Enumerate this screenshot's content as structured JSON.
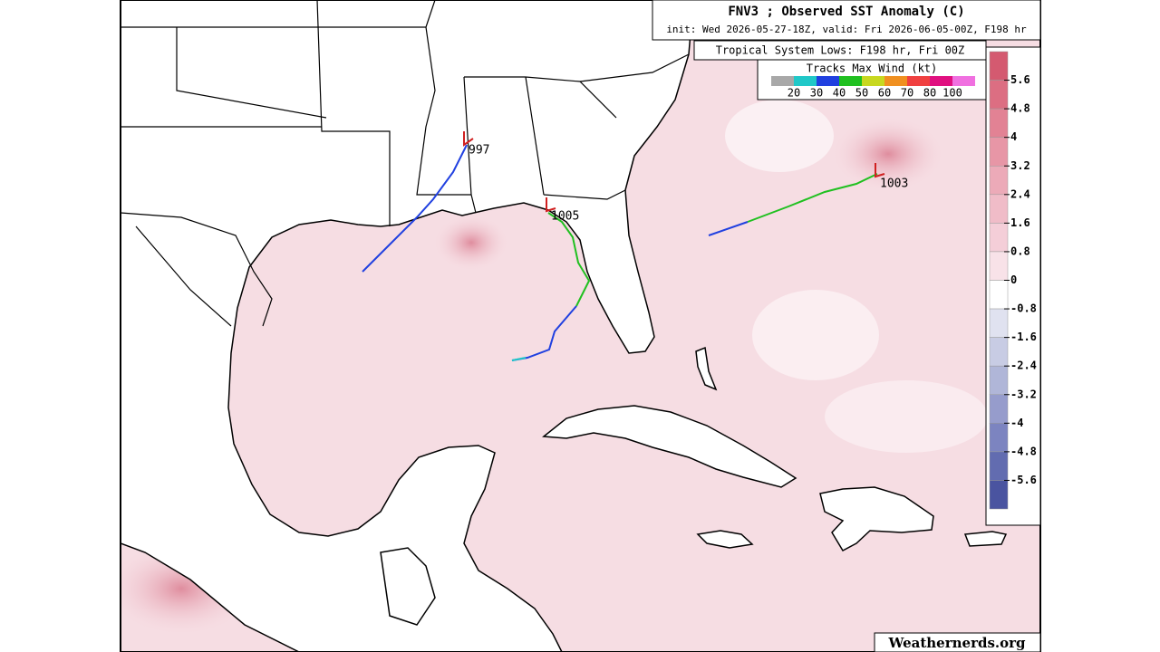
{
  "header": {
    "title": "FNV3 ; Observed SST Anomaly (C)",
    "subtitle": "init: Wed 2026-05-27-18Z, valid: Fri 2026-06-05-00Z, F198 hr"
  },
  "lows_box": {
    "title": "Tropical System Lows: F198 hr, Fri 00Z"
  },
  "tracks_legend": {
    "title": "Tracks Max Wind (kt)",
    "labels": [
      "20",
      "30",
      "40",
      "50",
      "60",
      "70",
      "80",
      "100"
    ],
    "colors": [
      "#a8a8a8",
      "#20c8c8",
      "#2040e0",
      "#20c020",
      "#c8d820",
      "#f09020",
      "#f04040",
      "#e01080",
      "#f070e0"
    ]
  },
  "colorbar": {
    "ticks": [
      5.6,
      4.8,
      4,
      3.2,
      2.4,
      1.6,
      0.8,
      0,
      -0.8,
      -1.6,
      -2.4,
      -3.2,
      -4,
      -4.8,
      -5.6
    ],
    "colors": [
      "#d45a70",
      "#dc6e82",
      "#e28294",
      "#e796a6",
      "#ecaab8",
      "#f0bcc8",
      "#f4ced8",
      "#f8e2e8",
      "#ffffff",
      "#e0e2f0",
      "#c8cce4",
      "#b0b6d8",
      "#969ccc",
      "#7c84c0",
      "#626cb0",
      "#4a54a0"
    ]
  },
  "lows": [
    {
      "label": "997"
    },
    {
      "label": "1005"
    },
    {
      "label": "1003"
    }
  ],
  "credit": "Weathernerds.org"
}
